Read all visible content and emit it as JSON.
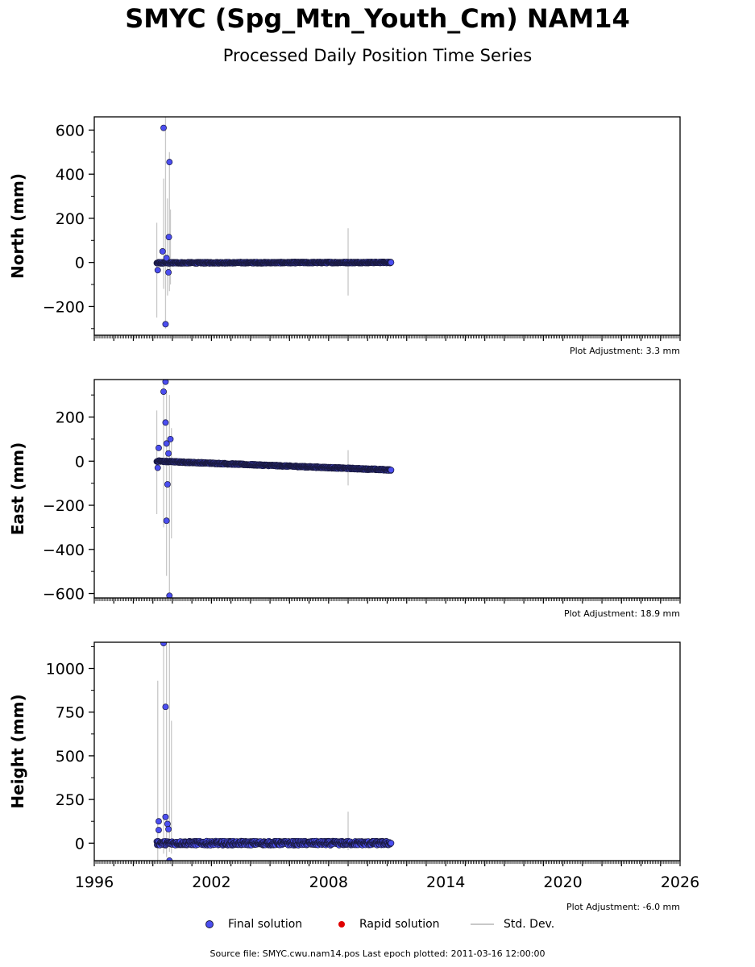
{
  "title": "SMYC (Spg_Mtn_Youth_Cm) NAM14",
  "subtitle": "Processed Daily Position Time Series",
  "legend": {
    "final": "Final solution",
    "rapid": "Rapid solution",
    "std": "Std. Dev."
  },
  "colors": {
    "final": "#4b4ef0",
    "final_edge": "#1a1a40",
    "rapid": "#e00000",
    "std": "#c8c8c8"
  },
  "footer": "Source file: SMYC.cwu.nam14.pos  Last epoch plotted: 2011-03-16 12:00:00",
  "x_axis": {
    "range": [
      1996,
      2026
    ],
    "ticks": [
      1996,
      2002,
      2008,
      2014,
      2020,
      2026
    ],
    "tick_labels": [
      "1996",
      "2002",
      "2008",
      "2014",
      "2020",
      "2026"
    ]
  },
  "chart_data": [
    {
      "type": "scatter",
      "component": "north",
      "ylabel": "North (mm)",
      "ylim": [
        -330,
        660
      ],
      "yticks": [
        -200,
        0,
        200,
        400,
        600
      ],
      "ytick_labels": [
        "−200",
        "0",
        "200",
        "400",
        "600"
      ],
      "plot_adjustment": "Plot Adjustment: 3.3 mm",
      "data_span": [
        1999.2,
        2011.2
      ],
      "trend": [
        [
          1999.2,
          -2
        ],
        [
          2011.2,
          0
        ]
      ],
      "scatter": 3,
      "outliers": [
        [
          1999.55,
          610
        ],
        [
          1999.85,
          455
        ],
        [
          1999.82,
          115
        ],
        [
          1999.5,
          50
        ],
        [
          1999.7,
          20
        ],
        [
          1999.25,
          -35
        ],
        [
          1999.8,
          -45
        ],
        [
          1999.65,
          -280
        ]
      ],
      "std_bars": [
        [
          1999.2,
          -250,
          180
        ],
        [
          1999.55,
          -120,
          380
        ],
        [
          1999.65,
          -300,
          660
        ],
        [
          1999.75,
          -150,
          290
        ],
        [
          1999.85,
          -130,
          500
        ],
        [
          1999.9,
          -100,
          240
        ],
        [
          2009.0,
          -150,
          155
        ]
      ]
    },
    {
      "type": "scatter",
      "component": "east",
      "ylabel": "East (mm)",
      "ylim": [
        -620,
        370
      ],
      "yticks": [
        -600,
        -400,
        -200,
        0,
        200
      ],
      "ytick_labels": [
        "−600",
        "−400",
        "−200",
        "0",
        "200"
      ],
      "plot_adjustment": "Plot Adjustment: 18.9 mm",
      "data_span": [
        1999.2,
        2011.2
      ],
      "trend": [
        [
          1999.2,
          0
        ],
        [
          2011.2,
          -40
        ]
      ],
      "scatter": 3,
      "outliers": [
        [
          1999.65,
          360
        ],
        [
          1999.55,
          315
        ],
        [
          1999.65,
          175
        ],
        [
          1999.9,
          100
        ],
        [
          1999.7,
          80
        ],
        [
          1999.3,
          60
        ],
        [
          1999.8,
          35
        ],
        [
          1999.25,
          -30
        ],
        [
          1999.75,
          -105
        ],
        [
          1999.7,
          -270
        ],
        [
          1999.85,
          -610
        ]
      ],
      "std_bars": [
        [
          1999.2,
          -240,
          230
        ],
        [
          1999.55,
          -300,
          370
        ],
        [
          1999.7,
          -520,
          320
        ],
        [
          1999.85,
          -620,
          300
        ],
        [
          1999.95,
          -350,
          150
        ],
        [
          2009.0,
          -110,
          50
        ]
      ]
    },
    {
      "type": "scatter",
      "component": "height",
      "ylabel": "Height (mm)",
      "ylim": [
        -100,
        1150
      ],
      "yticks": [
        0,
        250,
        500,
        750,
        1000
      ],
      "ytick_labels": [
        "0",
        "250",
        "500",
        "750",
        "1000"
      ],
      "plot_adjustment": "Plot Adjustment: -6.0 mm",
      "data_span": [
        1999.2,
        2011.2
      ],
      "trend": [
        [
          1999.2,
          0
        ],
        [
          2011.2,
          0
        ]
      ],
      "scatter": 12,
      "outliers": [
        [
          1999.55,
          1145
        ],
        [
          1999.65,
          780
        ],
        [
          1999.3,
          125
        ],
        [
          1999.65,
          150
        ],
        [
          1999.75,
          110
        ],
        [
          1999.8,
          80
        ],
        [
          1999.3,
          75
        ],
        [
          1999.85,
          -100
        ]
      ],
      "std_bars": [
        [
          1999.25,
          -100,
          930
        ],
        [
          1999.55,
          -60,
          1150
        ],
        [
          1999.7,
          -80,
          1150
        ],
        [
          1999.85,
          -50,
          1150
        ],
        [
          1999.95,
          -60,
          700
        ],
        [
          2009.0,
          -40,
          180
        ]
      ]
    }
  ]
}
